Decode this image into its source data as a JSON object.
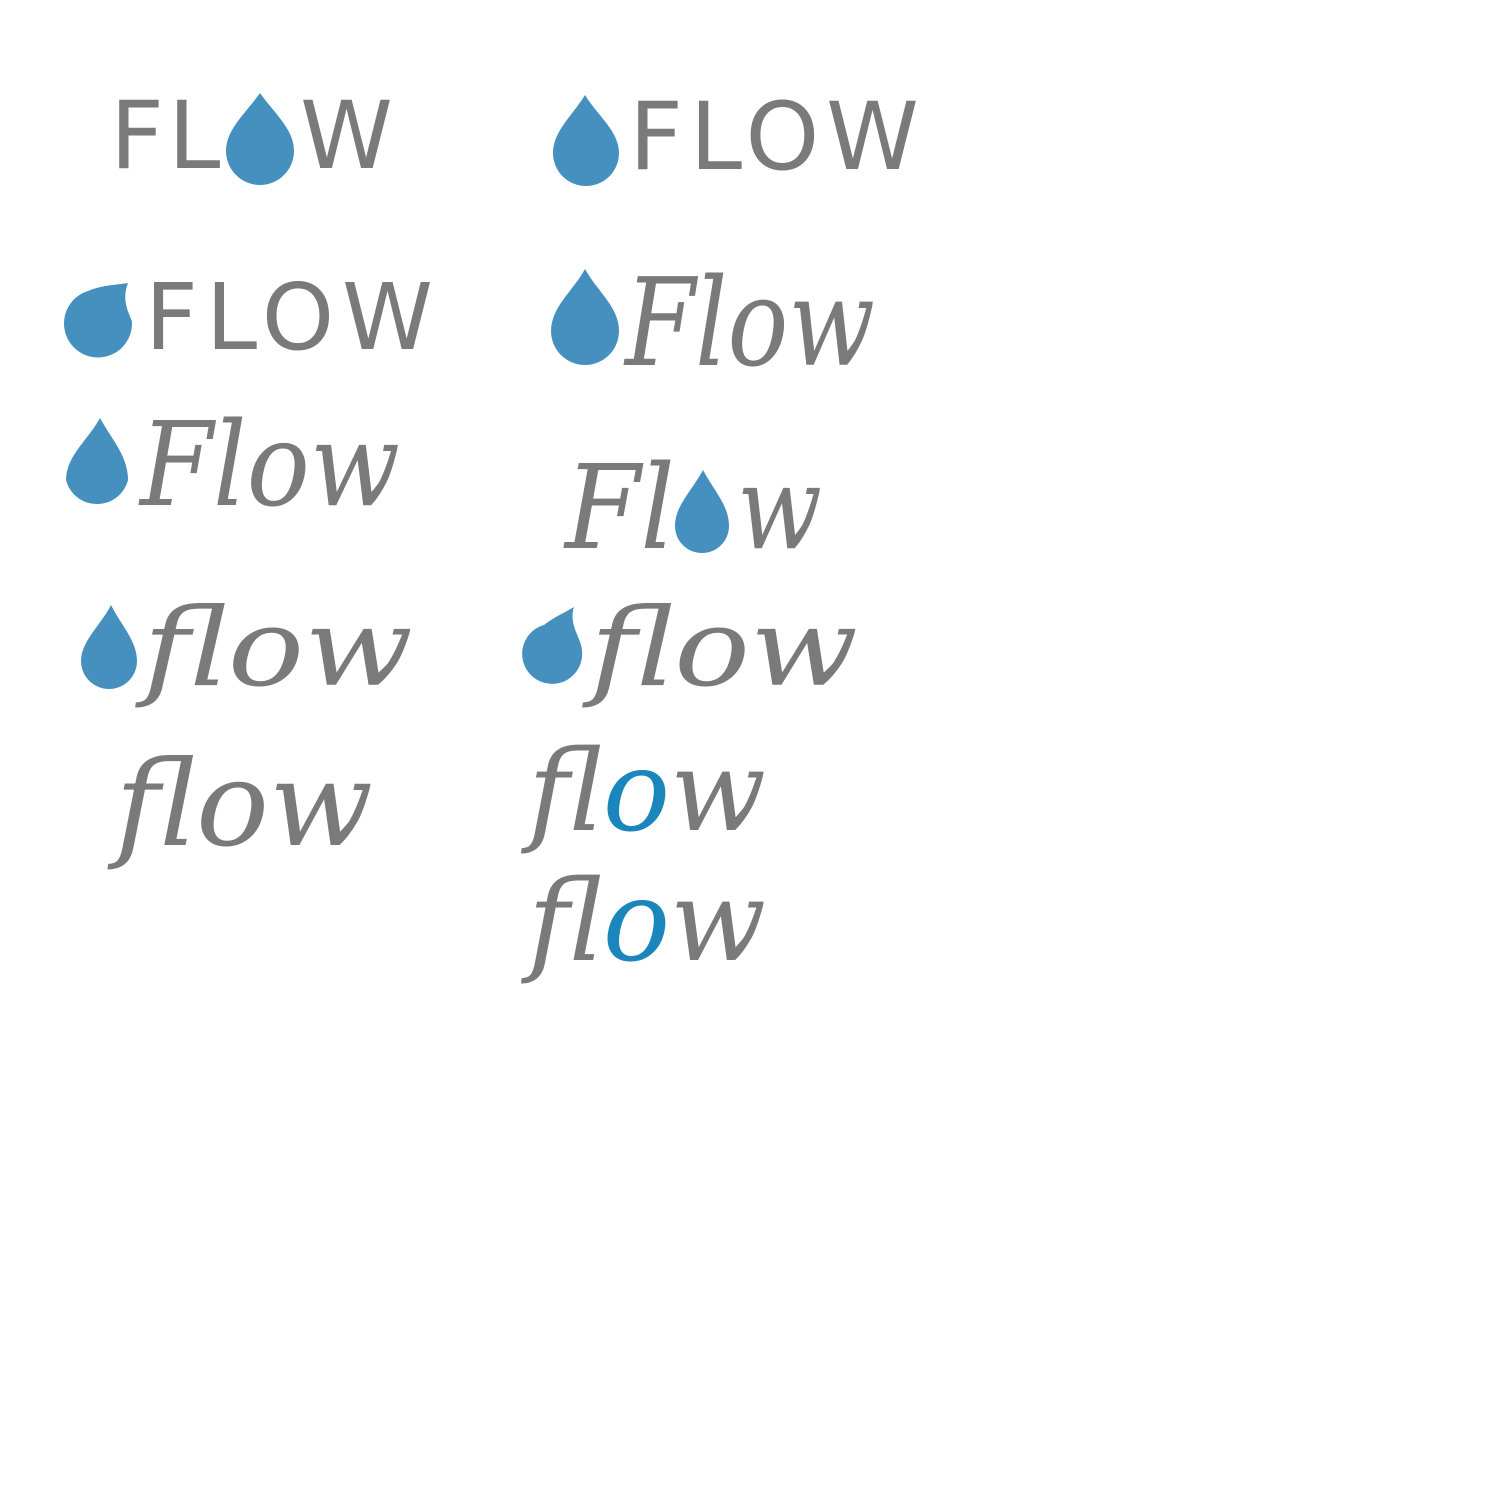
{
  "colors": {
    "text": "#7a7a7a",
    "drop": "#4590be",
    "drop_accent": "#1a86bb",
    "background": "#ffffff"
  },
  "logos": [
    {
      "id": "flow-caps-drop-as-o",
      "letters": [
        "F",
        "L",
        "W"
      ],
      "icon": "water-drop-icon"
    },
    {
      "id": "drop-flow-caps",
      "word": "FLOW",
      "icon": "water-drop-icon"
    },
    {
      "id": "tilted-drop-flow-caps",
      "word": "FLOW",
      "icon": "tilted-water-drop-icon"
    },
    {
      "id": "drop-flow-script-large",
      "word": "Flow",
      "icon": "water-drop-icon"
    },
    {
      "id": "drop-flow-script",
      "word": "Flow",
      "icon": "water-drop-icon"
    },
    {
      "id": "flow-script-drop-as-o",
      "letters": [
        "Fl",
        "w"
      ],
      "icon": "water-drop-icon"
    },
    {
      "id": "drop-flow-cursive-a",
      "word": "flow",
      "icon": "water-drop-icon"
    },
    {
      "id": "drop-flow-cursive-b",
      "word": "flow",
      "icon": "tilted-water-drop-icon"
    },
    {
      "id": "flow-cursive-plain",
      "word": "flow"
    },
    {
      "id": "flow-cursive-blue-o-a",
      "letters": [
        "fl",
        "o",
        "w"
      ]
    },
    {
      "id": "flow-cursive-blue-o-b",
      "letters": [
        "fl",
        "o",
        "w"
      ]
    }
  ]
}
